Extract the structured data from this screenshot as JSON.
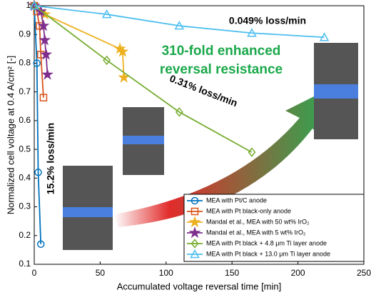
{
  "chart_data": {
    "type": "line",
    "xlabel": "Accumulated voltage reversal time [min]",
    "ylabel": "Normalized cell voltage at 0.4 A/cm² [-]",
    "xlim": [
      0,
      250
    ],
    "xticks": [
      0,
      50,
      100,
      150,
      200,
      250
    ],
    "ylim": [
      0.1,
      1
    ],
    "yticks": [
      0.1,
      0.2,
      0.3,
      0.4,
      0.5,
      0.6,
      0.7,
      0.8,
      0.9,
      1
    ],
    "annotations": [
      "310-fold enhanced",
      "reversal resistance",
      "0.049% loss/min",
      "0.31% loss/min",
      "15.2% loss/min"
    ],
    "series": [
      {
        "name": "MEA with Pt/C anode",
        "color": "#0072bd",
        "marker": "circle",
        "x": [
          0,
          2,
          3,
          5
        ],
        "values": [
          1,
          0.8,
          0.42,
          0.17
        ]
      },
      {
        "name": "MEA with Pt black-only anode",
        "color": "#d95319",
        "marker": "square",
        "x": [
          0,
          2,
          4,
          5,
          7
        ],
        "values": [
          1,
          0.98,
          0.93,
          0.83,
          0.68
        ]
      },
      {
        "name": "Mandal et al., MEA with 50 wt% IrO₂",
        "color": "#edb120",
        "marker": "star",
        "x": [
          0,
          8,
          65,
          67,
          68
        ],
        "values": [
          1,
          0.97,
          0.85,
          0.84,
          0.75
        ]
      },
      {
        "name": "Mandal et al., MEA with 5 wt% IrO₂",
        "color": "#7e2f8e",
        "marker": "star",
        "x": [
          0,
          5,
          7,
          8,
          9,
          10
        ],
        "values": [
          1,
          0.98,
          0.93,
          0.88,
          0.83,
          0.76
        ]
      },
      {
        "name": "MEA with Pt black + 4.8 μm Ti layer anode",
        "color": "#77ac30",
        "marker": "diamond",
        "x": [
          0,
          55,
          110,
          165
        ],
        "values": [
          1,
          0.81,
          0.63,
          0.49
        ]
      },
      {
        "name": "MEA with Pt black + 13.0 μm Ti layer anode",
        "color": "#4dbeee",
        "marker": "triangle",
        "x": [
          0,
          55,
          110,
          165,
          220
        ],
        "values": [
          1,
          0.97,
          0.93,
          0.905,
          0.89
        ]
      }
    ]
  }
}
